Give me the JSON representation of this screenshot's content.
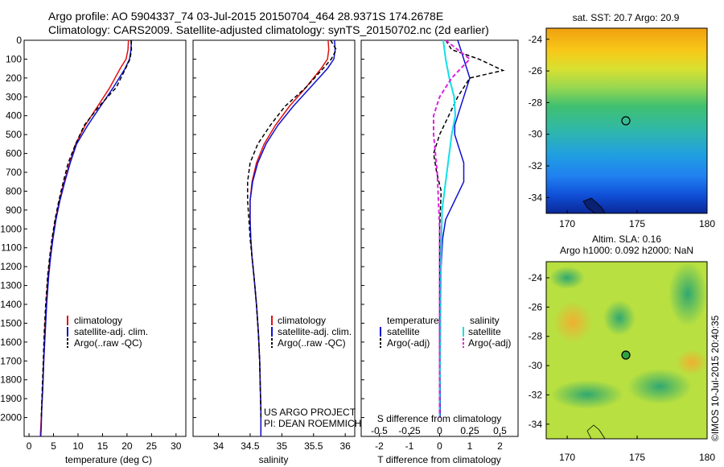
{
  "header": {
    "line1": "Argo profile: AO 5904337_74 03-Jul-2015 20150704_464 28.9371S 174.2678E",
    "line2": "Climatology: CARS2009. Satellite-adjusted climatology: synTS_20150702.nc (2d earlier)"
  },
  "depth_ticks": [
    "0",
    "100",
    "200",
    "300",
    "400",
    "500",
    "600",
    "700",
    "800",
    "900",
    "1000",
    "1100",
    "1200",
    "1300",
    "1400",
    "1500",
    "1600",
    "1700",
    "1800",
    "1900",
    "2000"
  ],
  "panels": {
    "temperature": {
      "xlabel": "temperature (deg C)",
      "ticks": [
        "0",
        "5",
        "10",
        "15",
        "20",
        "25",
        "30"
      ],
      "legend": [
        "climatology",
        "satellite-adj. clim.",
        "Argo(..raw -QC)"
      ]
    },
    "salinity": {
      "xlabel": "salinity",
      "ticks": [
        "34",
        "34.5",
        "35",
        "35.5",
        "36"
      ],
      "legend": [
        "climatology",
        "satellite-adj. clim.",
        "Argo(..raw -QC)"
      ],
      "note1": "US ARGO PROJECT",
      "note2": "PI: DEAN ROEMMICH"
    },
    "difference": {
      "xlabel": "T difference from climatology",
      "ticks": [
        "-2",
        "-1",
        "0",
        "1",
        "2"
      ],
      "s_label": "S difference from climatology",
      "s_ticks": [
        "-0.5",
        "-0.25",
        "0",
        "0.25",
        "0.5"
      ],
      "legend_t_title": "temperature",
      "legend_s_title": "salinity",
      "legend_t": [
        "satellite",
        "Argo(-adj)"
      ],
      "legend_s": [
        "satellite",
        "Argo(-adj)"
      ]
    }
  },
  "maps": {
    "sst_title": "sat. SST: 20.7  Argo: 20.9",
    "sla_title1": "Altim. SLA: 0.16",
    "sla_title2": "Argo h1000: 0.092  h2000: NaN",
    "lat_ticks": [
      "-24",
      "-26",
      "-28",
      "-30",
      "-32",
      "-34"
    ],
    "lon_ticks": [
      "170",
      "175",
      "180"
    ]
  },
  "watermark": "©IMOS 10-Jul-2015 20:40:35",
  "colors": {
    "climatology": "#e01010",
    "satellite": "#1010d0",
    "argo": "#000000",
    "satellite_s": "#10e0e8",
    "argo_s": "#e020e0"
  },
  "chart_data": [
    {
      "type": "line",
      "xlabel": "temperature (deg C)",
      "ylabel": "",
      "xlim": [
        -1,
        32
      ],
      "ylim": [
        2100,
        0
      ],
      "series": [
        {
          "name": "climatology",
          "x": [
            20.3,
            20.2,
            19.8,
            18.6,
            16.5,
            14.0,
            11.5,
            9.5,
            8.3,
            7.2,
            6.2,
            5.4,
            4.8,
            4.3,
            3.9,
            3.5,
            3.2,
            3.0,
            2.8,
            2.6,
            2.4,
            2.3
          ],
          "y": [
            0,
            50,
            100,
            150,
            250,
            350,
            450,
            550,
            650,
            750,
            850,
            950,
            1050,
            1150,
            1250,
            1400,
            1550,
            1700,
            1850,
            1950,
            2050,
            2100
          ]
        },
        {
          "name": "satellite-adj. clim.",
          "x": [
            20.9,
            20.8,
            20.5,
            19.6,
            17.2,
            14.6,
            12.0,
            9.7,
            8.4,
            7.3,
            6.3,
            5.5,
            4.9,
            4.4,
            4.0,
            3.6,
            3.3,
            3.0,
            2.8,
            2.6,
            2.5,
            2.4
          ],
          "y": [
            0,
            50,
            100,
            150,
            250,
            350,
            450,
            550,
            650,
            750,
            850,
            950,
            1050,
            1150,
            1250,
            1400,
            1550,
            1700,
            1850,
            1950,
            2050,
            2100
          ]
        },
        {
          "name": "Argo(..raw -QC)",
          "x": [
            20.8,
            20.9,
            20.6,
            19.7,
            17.8,
            14.3,
            11.3,
            9.5,
            8.0,
            7.0,
            6.1,
            5.3,
            4.7,
            4.2,
            3.8,
            3.4,
            3.1,
            2.9,
            2.7,
            2.5
          ],
          "y": [
            0,
            50,
            100,
            150,
            250,
            350,
            450,
            550,
            650,
            750,
            850,
            950,
            1050,
            1150,
            1250,
            1400,
            1550,
            1700,
            1850,
            2000
          ]
        }
      ]
    },
    {
      "type": "line",
      "xlabel": "salinity",
      "ylabel": "",
      "xlim": [
        33.6,
        36.15
      ],
      "ylim": [
        2100,
        0
      ],
      "series": [
        {
          "name": "climatology",
          "x": [
            35.73,
            35.74,
            35.72,
            35.62,
            35.38,
            35.12,
            34.9,
            34.72,
            34.6,
            34.53,
            34.5,
            34.5,
            34.51,
            34.53,
            34.56,
            34.6,
            34.63,
            34.65,
            34.66,
            34.67,
            34.67,
            34.67
          ],
          "y": [
            0,
            50,
            100,
            150,
            250,
            350,
            450,
            550,
            650,
            750,
            850,
            950,
            1050,
            1150,
            1250,
            1400,
            1550,
            1700,
            1850,
            1950,
            2050,
            2100
          ]
        },
        {
          "name": "satellite-adj. clim.",
          "x": [
            35.83,
            35.84,
            35.82,
            35.72,
            35.45,
            35.18,
            34.94,
            34.75,
            34.62,
            34.54,
            34.5,
            34.5,
            34.51,
            34.53,
            34.56,
            34.6,
            34.63,
            34.65,
            34.66,
            34.67,
            34.67,
            34.67
          ],
          "y": [
            0,
            50,
            100,
            150,
            250,
            350,
            450,
            550,
            650,
            750,
            850,
            950,
            1050,
            1150,
            1250,
            1400,
            1550,
            1700,
            1850,
            1950,
            2050,
            2100
          ]
        },
        {
          "name": "Argo(..raw -QC)",
          "x": [
            35.77,
            35.86,
            35.78,
            35.65,
            35.38,
            35.05,
            34.82,
            34.62,
            34.5,
            34.46,
            34.46,
            34.48,
            34.5,
            34.53,
            34.56,
            34.6,
            34.63,
            34.65,
            34.66,
            34.67
          ],
          "y": [
            0,
            50,
            100,
            150,
            250,
            350,
            450,
            550,
            650,
            750,
            850,
            950,
            1050,
            1150,
            1250,
            1400,
            1550,
            1700,
            1850,
            2000
          ]
        }
      ]
    },
    {
      "type": "line",
      "xlabel": "T difference from climatology",
      "ylabel": "",
      "xlim": [
        -2.6,
        2.6
      ],
      "ylim": [
        2100,
        0
      ],
      "series": [
        {
          "name": "satellite",
          "x": [
            0.6,
            0.7,
            0.8,
            1.0,
            0.8,
            0.6,
            0.5,
            0.5,
            0.6,
            0.8,
            0.8,
            0.5,
            0.2,
            0.1,
            0.05,
            0.03,
            0.02,
            0.02,
            0.02
          ],
          "y": [
            0,
            50,
            100,
            200,
            300,
            400,
            450,
            500,
            550,
            650,
            750,
            850,
            950,
            1050,
            1200,
            1400,
            1600,
            1800,
            2000
          ]
        },
        {
          "name": "Argo(-adj)",
          "x": [
            0.2,
            0.4,
            1.3,
            2.1,
            1.0,
            0.6,
            0.3,
            0.0,
            -0.2,
            -0.1,
            0.05,
            0.0,
            0.0,
            0.0,
            0.0,
            0.0,
            0.0
          ],
          "y": [
            0,
            50,
            100,
            160,
            200,
            300,
            400,
            500,
            600,
            700,
            800,
            1000,
            1200,
            1400,
            1600,
            1800,
            2000
          ]
        },
        {
          "name": "satellite (salinity)",
          "x": [
            0.03,
            0.05,
            0.08,
            0.12,
            0.13,
            0.1,
            0.06,
            0.02,
            0.01,
            0.005,
            0.0
          ],
          "y": [
            0,
            100,
            200,
            300,
            400,
            500,
            700,
            900,
            1200,
            1600,
            2000
          ]
        },
        {
          "name": "Argo(-adj) (salinity)",
          "x": [
            0.05,
            0.15,
            0.25,
            0.1,
            0.0,
            -0.05,
            -0.05,
            -0.02,
            0.0,
            0.0
          ],
          "y": [
            0,
            50,
            100,
            200,
            300,
            400,
            500,
            700,
            1000,
            2000
          ]
        }
      ]
    }
  ]
}
